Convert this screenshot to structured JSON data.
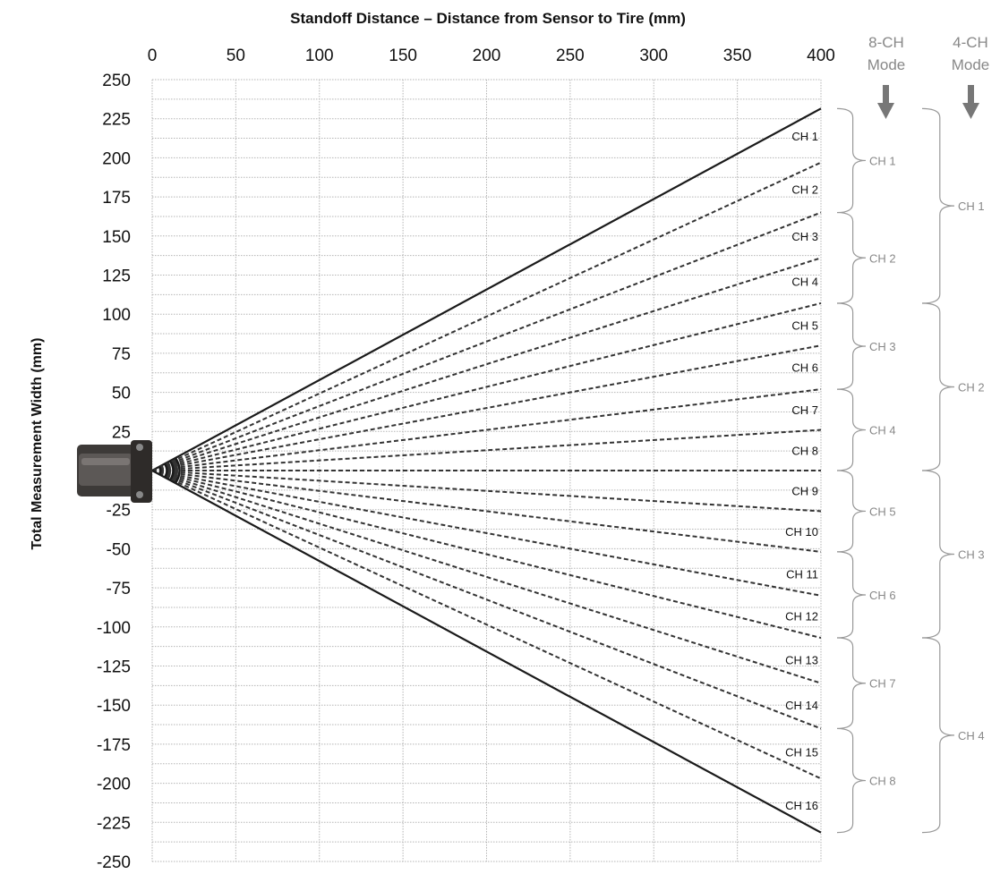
{
  "chart_data": {
    "type": "line",
    "title": "Standoff Distance – Distance from Sensor to Tire (mm)",
    "xlabel": "Standoff Distance – Distance from Sensor to Tire (mm)",
    "ylabel": "Total Measurement Width (mm)",
    "xlim": [
      0,
      400
    ],
    "ylim": [
      -250,
      250
    ],
    "x_ticks": [
      0,
      50,
      100,
      150,
      200,
      250,
      300,
      350,
      400
    ],
    "y_ticks": [
      250,
      225,
      200,
      175,
      150,
      125,
      100,
      75,
      50,
      25,
      -25,
      -50,
      -75,
      -100,
      -125,
      -150,
      -175,
      -200,
      -225,
      -250
    ],
    "x_axis_position": "top",
    "grid": true,
    "boundary_endpoints": [
      231.5,
      -231.5
    ],
    "line_endpoints": [
      231.5,
      197,
      165,
      136,
      107,
      80,
      52,
      26,
      0,
      -26,
      -52,
      -80,
      -107,
      -136,
      -165,
      -197,
      -231.5
    ],
    "line_styles": [
      "solid",
      "dashed",
      "dashed",
      "dashed",
      "dashed",
      "dashed",
      "dashed",
      "dashed",
      "dashed",
      "dashed",
      "dashed",
      "dashed",
      "dashed",
      "dashed",
      "dashed",
      "dashed",
      "solid"
    ],
    "channels_16": [
      {
        "label": "CH 1",
        "y": 214
      },
      {
        "label": "CH 2",
        "y": 180
      },
      {
        "label": "CH 3",
        "y": 150
      },
      {
        "label": "CH 4",
        "y": 121
      },
      {
        "label": "CH 5",
        "y": 93
      },
      {
        "label": "CH 6",
        "y": 66
      },
      {
        "label": "CH 7",
        "y": 39
      },
      {
        "label": "CH 8",
        "y": 13
      },
      {
        "label": "CH 9",
        "y": -13
      },
      {
        "label": "CH 10",
        "y": -39
      },
      {
        "label": "CH 11",
        "y": -66
      },
      {
        "label": "CH 12",
        "y": -93
      },
      {
        "label": "CH 13",
        "y": -121
      },
      {
        "label": "CH 14",
        "y": -150
      },
      {
        "label": "CH 15",
        "y": -180
      },
      {
        "label": "CH 16",
        "y": -214
      }
    ],
    "mode_8ch": {
      "label_line1": "8-CH",
      "label_line2": "Mode",
      "groups": [
        {
          "label": "CH 1",
          "from": 231.5,
          "to": 165
        },
        {
          "label": "CH 2",
          "from": 165,
          "to": 107
        },
        {
          "label": "CH 3",
          "from": 107,
          "to": 52
        },
        {
          "label": "CH 4",
          "from": 52,
          "to": 0
        },
        {
          "label": "CH 5",
          "from": 0,
          "to": -52
        },
        {
          "label": "CH 6",
          "from": -52,
          "to": -107
        },
        {
          "label": "CH 7",
          "from": -107,
          "to": -165
        },
        {
          "label": "CH 8",
          "from": -165,
          "to": -231.5
        }
      ]
    },
    "mode_4ch": {
      "label_line1": "4-CH",
      "label_line2": "Mode",
      "groups": [
        {
          "label": "CH 1",
          "from": 231.5,
          "to": 107
        },
        {
          "label": "CH 2",
          "from": 107,
          "to": 0
        },
        {
          "label": "CH 3",
          "from": 0,
          "to": -107
        },
        {
          "label": "CH 4",
          "from": -107,
          "to": -231.5
        }
      ]
    }
  },
  "colors": {
    "grid": "#b5b5b5",
    "line": "#1a1a1a",
    "dashed": "#333333",
    "bracket": "#999999",
    "arrow": "#777777",
    "sensor_body": "#3d3a38"
  }
}
